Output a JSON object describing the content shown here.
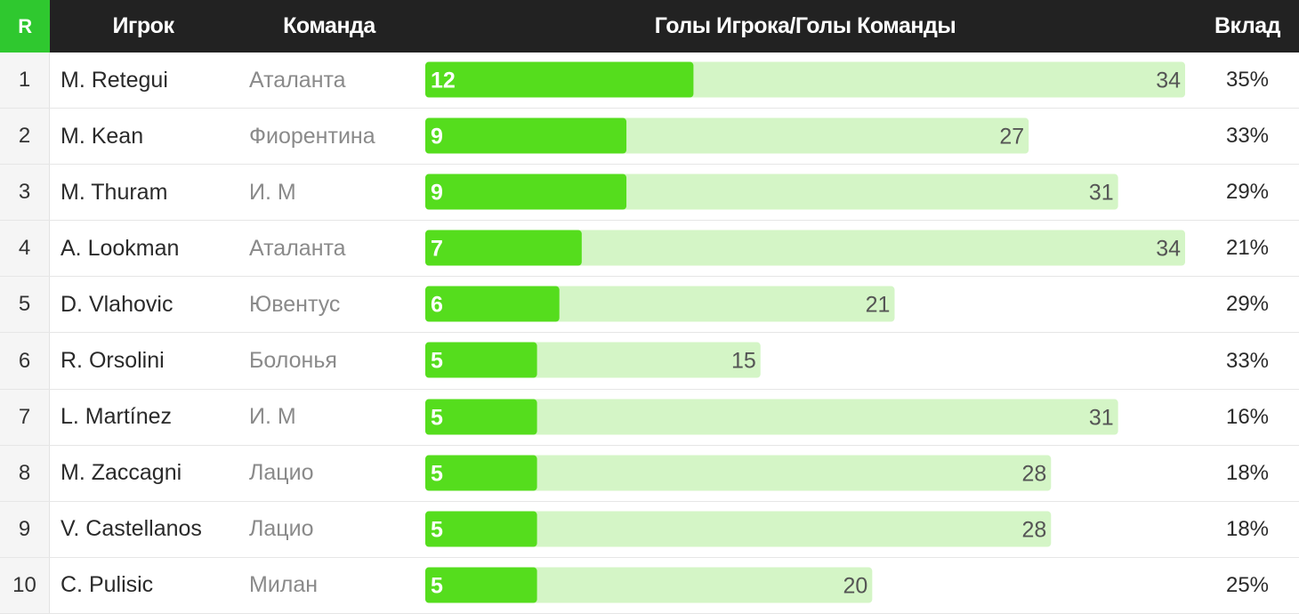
{
  "header": {
    "rank": "R",
    "player": "Игрок",
    "team": "Команда",
    "goals": "Голы Игрока/Голы Команды",
    "share": "Вклад"
  },
  "colors": {
    "header_bg": "#222222",
    "rank_header_bg": "#2fc82f",
    "player_bar": "#55dd1d",
    "team_bar": "#d4f5c6"
  },
  "chart_data": {
    "type": "bar",
    "categories": [
      "M. Retegui",
      "M. Kean",
      "M. Thuram",
      "A. Lookman",
      "D. Vlahovic",
      "R. Orsolini",
      "L. Martínez",
      "M. Zaccagni",
      "V. Castellanos",
      "C. Pulisic"
    ],
    "series": [
      {
        "values": [
          12,
          9,
          9,
          7,
          6,
          5,
          5,
          5,
          5,
          5
        ]
      },
      {
        "values": [
          34,
          27,
          31,
          34,
          21,
          15,
          31,
          28,
          28,
          20
        ]
      }
    ],
    "title": "Голы Игрока/Голы Команды",
    "xlim": [
      0,
      34
    ]
  },
  "rows": [
    {
      "rank": "1",
      "player": "M. Retegui",
      "team": "Аталанта",
      "player_goals": 12,
      "team_goals": 34,
      "share": "35%"
    },
    {
      "rank": "2",
      "player": "M. Kean",
      "team": "Фиорентина",
      "player_goals": 9,
      "team_goals": 27,
      "share": "33%"
    },
    {
      "rank": "3",
      "player": "M. Thuram",
      "team": "И. М",
      "player_goals": 9,
      "team_goals": 31,
      "share": "29%"
    },
    {
      "rank": "4",
      "player": "A. Lookman",
      "team": "Аталанта",
      "player_goals": 7,
      "team_goals": 34,
      "share": "21%"
    },
    {
      "rank": "5",
      "player": "D. Vlahovic",
      "team": "Ювентус",
      "player_goals": 6,
      "team_goals": 21,
      "share": "29%"
    },
    {
      "rank": "6",
      "player": "R. Orsolini",
      "team": "Болонья",
      "player_goals": 5,
      "team_goals": 15,
      "share": "33%"
    },
    {
      "rank": "7",
      "player": "L. Martínez",
      "team": "И. М",
      "player_goals": 5,
      "team_goals": 31,
      "share": "16%"
    },
    {
      "rank": "8",
      "player": "M. Zaccagni",
      "team": "Лацио",
      "player_goals": 5,
      "team_goals": 28,
      "share": "18%"
    },
    {
      "rank": "9",
      "player": "V. Castellanos",
      "team": "Лацио",
      "player_goals": 5,
      "team_goals": 28,
      "share": "18%"
    },
    {
      "rank": "10",
      "player": "C. Pulisic",
      "team": "Милан",
      "player_goals": 5,
      "team_goals": 20,
      "share": "25%"
    }
  ]
}
